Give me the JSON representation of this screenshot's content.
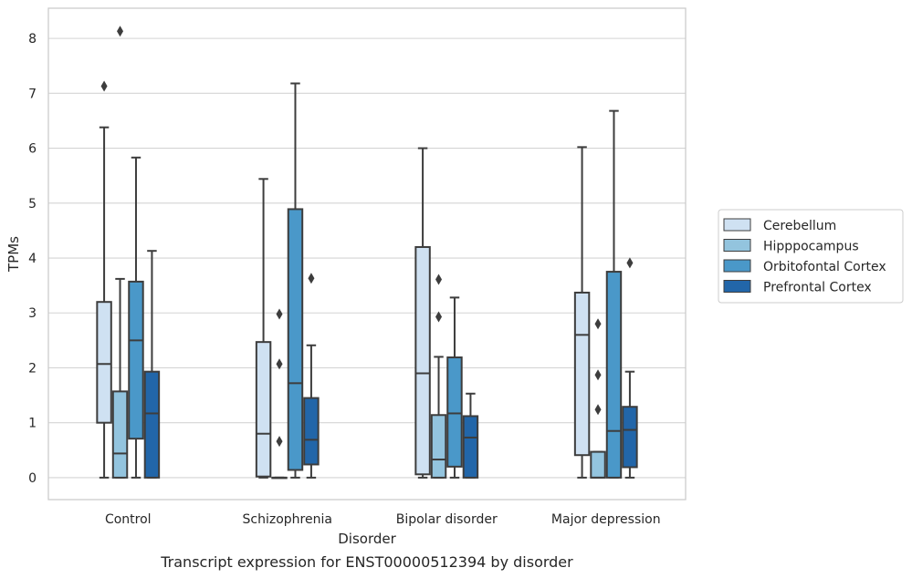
{
  "chart_data": {
    "type": "box",
    "title": "",
    "caption": "Transcript expression for ENST00000512394 by disorder",
    "xlabel": "Disorder",
    "ylabel": "TPMs",
    "ylim": [
      -0.4,
      8.55
    ],
    "yticks": [
      0,
      1,
      2,
      3,
      4,
      5,
      6,
      7,
      8
    ],
    "grid": "horizontal",
    "legend_position": "right",
    "categories": [
      "Control",
      "Schizophrenia",
      "Bipolar disorder",
      "Major depression"
    ],
    "series": [
      {
        "name": "Cerebellum",
        "color": "#cfe1f2",
        "boxes": [
          {
            "whisker_low": 0,
            "q1": 1.0,
            "median": 2.07,
            "q3": 3.2,
            "whisker_high": 6.38,
            "outliers": [
              7.13
            ]
          },
          {
            "whisker_low": 0,
            "q1": 0.02,
            "median": 0.8,
            "q3": 2.47,
            "whisker_high": 5.44,
            "outliers": []
          },
          {
            "whisker_low": 0,
            "q1": 0.06,
            "median": 1.9,
            "q3": 4.2,
            "whisker_high": 6.0,
            "outliers": []
          },
          {
            "whisker_low": 0,
            "q1": 0.41,
            "median": 2.6,
            "q3": 3.37,
            "whisker_high": 6.02,
            "outliers": []
          }
        ]
      },
      {
        "name": "Hipppocampus",
        "color": "#93c4de",
        "boxes": [
          {
            "whisker_low": 0,
            "q1": 0.0,
            "median": 0.44,
            "q3": 1.57,
            "whisker_high": 3.62,
            "outliers": [
              8.13
            ]
          },
          {
            "whisker_low": 0,
            "q1": 0.0,
            "median": 0.0,
            "q3": 0.0,
            "whisker_high": 0.0,
            "outliers": [
              0.66,
              2.07,
              2.98
            ]
          },
          {
            "whisker_low": 0,
            "q1": 0.0,
            "median": 0.33,
            "q3": 1.14,
            "whisker_high": 2.2,
            "outliers": [
              2.93,
              3.61
            ]
          },
          {
            "whisker_low": 0,
            "q1": 0.0,
            "median": 0.0,
            "q3": 0.47,
            "whisker_high": 0.47,
            "outliers": [
              1.24,
              1.87,
              2.8
            ]
          }
        ]
      },
      {
        "name": "Orbitofontal Cortex",
        "color": "#4a98c9",
        "boxes": [
          {
            "whisker_low": 0,
            "q1": 0.71,
            "median": 2.5,
            "q3": 3.57,
            "whisker_high": 5.83,
            "outliers": []
          },
          {
            "whisker_low": 0,
            "q1": 0.14,
            "median": 1.72,
            "q3": 4.89,
            "whisker_high": 7.18,
            "outliers": []
          },
          {
            "whisker_low": 0,
            "q1": 0.2,
            "median": 1.17,
            "q3": 2.19,
            "whisker_high": 3.28,
            "outliers": []
          },
          {
            "whisker_low": 0,
            "q1": 0.0,
            "median": 0.85,
            "q3": 3.75,
            "whisker_high": 6.68,
            "outliers": []
          }
        ]
      },
      {
        "name": "Prefrontal Cortex",
        "color": "#2266a9",
        "boxes": [
          {
            "whisker_low": 0,
            "q1": 0.0,
            "median": 1.17,
            "q3": 1.93,
            "whisker_high": 4.13,
            "outliers": []
          },
          {
            "whisker_low": 0,
            "q1": 0.24,
            "median": 0.69,
            "q3": 1.45,
            "whisker_high": 2.41,
            "outliers": [
              3.63
            ]
          },
          {
            "whisker_low": 0,
            "q1": 0.0,
            "median": 0.73,
            "q3": 1.12,
            "whisker_high": 1.53,
            "outliers": []
          },
          {
            "whisker_low": 0,
            "q1": 0.19,
            "median": 0.87,
            "q3": 1.29,
            "whisker_high": 1.93,
            "outliers": [
              3.91
            ]
          }
        ]
      }
    ]
  }
}
